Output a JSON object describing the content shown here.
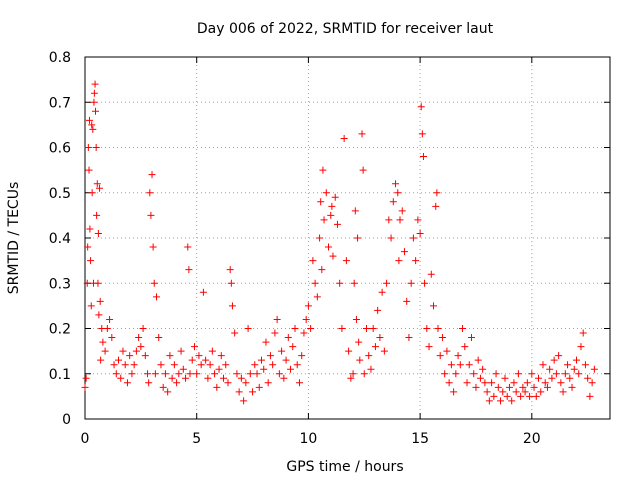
{
  "chart_data": {
    "type": "scatter",
    "title": "Day 006 of 2022, SRMTID for receiver laut",
    "xlabel": "GPS time / hours",
    "ylabel": "SRMTID / TECUs",
    "xlim": [
      0,
      23.5
    ],
    "ylim": [
      0,
      0.8
    ],
    "x_ticks": [
      0,
      5,
      10,
      15,
      20
    ],
    "x_tick_labels": [
      "0",
      "5",
      "10",
      "15",
      "20"
    ],
    "y_ticks": [
      0,
      0.1,
      0.2,
      0.3,
      0.4,
      0.5,
      0.6,
      0.7,
      0.8
    ],
    "y_tick_labels": [
      "0",
      "0.1",
      "0.2",
      "0.3",
      "0.4",
      "0.5",
      "0.6",
      "0.7",
      "0.8"
    ],
    "grid": true,
    "marker": "+",
    "colors": {
      "points": "#ff0000",
      "grid": "#a0a0a0",
      "axes": "#000000"
    },
    "series": [
      {
        "name": "SRMTID",
        "points": [
          [
            0.0,
            0.07
          ],
          [
            0.05,
            0.09
          ],
          [
            0.1,
            0.3
          ],
          [
            0.12,
            0.38
          ],
          [
            0.15,
            0.6
          ],
          [
            0.18,
            0.55
          ],
          [
            0.2,
            0.66
          ],
          [
            0.22,
            0.42
          ],
          [
            0.25,
            0.35
          ],
          [
            0.28,
            0.25
          ],
          [
            0.3,
            0.65
          ],
          [
            0.32,
            0.5
          ],
          [
            0.35,
            0.64
          ],
          [
            0.38,
            0.3
          ],
          [
            0.4,
            0.7
          ],
          [
            0.42,
            0.72
          ],
          [
            0.45,
            0.74
          ],
          [
            0.47,
            0.68
          ],
          [
            0.5,
            0.6
          ],
          [
            0.52,
            0.45
          ],
          [
            0.55,
            0.52
          ],
          [
            0.58,
            0.3
          ],
          [
            0.6,
            0.41
          ],
          [
            0.62,
            0.23
          ],
          [
            0.65,
            0.51
          ],
          [
            0.68,
            0.26
          ],
          [
            0.7,
            0.13
          ],
          [
            0.75,
            0.2
          ],
          [
            0.8,
            0.17
          ],
          [
            0.9,
            0.15
          ],
          [
            1.0,
            0.2
          ],
          [
            1.1,
            0.22
          ],
          [
            1.2,
            0.18
          ],
          [
            1.3,
            0.12
          ],
          [
            1.4,
            0.1
          ],
          [
            1.5,
            0.13
          ],
          [
            1.6,
            0.09
          ],
          [
            1.7,
            0.15
          ],
          [
            1.8,
            0.12
          ],
          [
            1.9,
            0.08
          ],
          [
            2.0,
            0.14
          ],
          [
            2.1,
            0.1
          ],
          [
            2.2,
            0.12
          ],
          [
            2.3,
            0.15
          ],
          [
            2.4,
            0.18
          ],
          [
            2.5,
            0.16
          ],
          [
            2.6,
            0.2
          ],
          [
            2.7,
            0.14
          ],
          [
            2.8,
            0.1
          ],
          [
            2.85,
            0.08
          ],
          [
            2.9,
            0.5
          ],
          [
            2.95,
            0.45
          ],
          [
            3.0,
            0.54
          ],
          [
            3.05,
            0.38
          ],
          [
            3.1,
            0.3
          ],
          [
            3.15,
            0.1
          ],
          [
            3.2,
            0.27
          ],
          [
            3.3,
            0.18
          ],
          [
            3.4,
            0.12
          ],
          [
            3.5,
            0.07
          ],
          [
            3.6,
            0.1
          ],
          [
            3.7,
            0.06
          ],
          [
            3.8,
            0.14
          ],
          [
            3.9,
            0.09
          ],
          [
            4.0,
            0.12
          ],
          [
            4.1,
            0.08
          ],
          [
            4.2,
            0.1
          ],
          [
            4.3,
            0.15
          ],
          [
            4.4,
            0.11
          ],
          [
            4.5,
            0.09
          ],
          [
            4.6,
            0.38
          ],
          [
            4.65,
            0.33
          ],
          [
            4.7,
            0.1
          ],
          [
            4.8,
            0.13
          ],
          [
            4.9,
            0.16
          ],
          [
            5.0,
            0.1
          ],
          [
            5.1,
            0.14
          ],
          [
            5.2,
            0.12
          ],
          [
            5.3,
            0.28
          ],
          [
            5.4,
            0.13
          ],
          [
            5.5,
            0.09
          ],
          [
            5.6,
            0.12
          ],
          [
            5.7,
            0.15
          ],
          [
            5.8,
            0.1
          ],
          [
            5.9,
            0.07
          ],
          [
            6.0,
            0.11
          ],
          [
            6.1,
            0.14
          ],
          [
            6.2,
            0.09
          ],
          [
            6.3,
            0.12
          ],
          [
            6.4,
            0.08
          ],
          [
            6.5,
            0.33
          ],
          [
            6.55,
            0.3
          ],
          [
            6.6,
            0.25
          ],
          [
            6.7,
            0.19
          ],
          [
            6.8,
            0.1
          ],
          [
            6.9,
            0.06
          ],
          [
            7.0,
            0.09
          ],
          [
            7.1,
            0.04
          ],
          [
            7.2,
            0.08
          ],
          [
            7.3,
            0.2
          ],
          [
            7.4,
            0.1
          ],
          [
            7.5,
            0.06
          ],
          [
            7.6,
            0.12
          ],
          [
            7.7,
            0.1
          ],
          [
            7.8,
            0.07
          ],
          [
            7.9,
            0.13
          ],
          [
            8.0,
            0.11
          ],
          [
            8.1,
            0.17
          ],
          [
            8.2,
            0.08
          ],
          [
            8.3,
            0.14
          ],
          [
            8.4,
            0.12
          ],
          [
            8.5,
            0.19
          ],
          [
            8.6,
            0.22
          ],
          [
            8.7,
            0.1
          ],
          [
            8.8,
            0.15
          ],
          [
            8.9,
            0.09
          ],
          [
            9.0,
            0.13
          ],
          [
            9.1,
            0.18
          ],
          [
            9.2,
            0.11
          ],
          [
            9.3,
            0.16
          ],
          [
            9.4,
            0.2
          ],
          [
            9.5,
            0.12
          ],
          [
            9.6,
            0.08
          ],
          [
            9.7,
            0.14
          ],
          [
            9.8,
            0.19
          ],
          [
            9.9,
            0.22
          ],
          [
            10.0,
            0.25
          ],
          [
            10.1,
            0.2
          ],
          [
            10.2,
            0.35
          ],
          [
            10.3,
            0.3
          ],
          [
            10.4,
            0.27
          ],
          [
            10.5,
            0.4
          ],
          [
            10.55,
            0.48
          ],
          [
            10.6,
            0.33
          ],
          [
            10.65,
            0.55
          ],
          [
            10.7,
            0.44
          ],
          [
            10.8,
            0.5
          ],
          [
            10.9,
            0.38
          ],
          [
            11.0,
            0.45
          ],
          [
            11.05,
            0.47
          ],
          [
            11.1,
            0.36
          ],
          [
            11.2,
            0.49
          ],
          [
            11.3,
            0.43
          ],
          [
            11.4,
            0.3
          ],
          [
            11.5,
            0.2
          ],
          [
            11.6,
            0.62
          ],
          [
            11.7,
            0.35
          ],
          [
            11.8,
            0.15
          ],
          [
            11.9,
            0.09
          ],
          [
            12.0,
            0.1
          ],
          [
            12.05,
            0.3
          ],
          [
            12.1,
            0.46
          ],
          [
            12.15,
            0.22
          ],
          [
            12.2,
            0.4
          ],
          [
            12.25,
            0.17
          ],
          [
            12.3,
            0.13
          ],
          [
            12.4,
            0.63
          ],
          [
            12.45,
            0.55
          ],
          [
            12.5,
            0.1
          ],
          [
            12.6,
            0.2
          ],
          [
            12.7,
            0.14
          ],
          [
            12.8,
            0.11
          ],
          [
            12.9,
            0.2
          ],
          [
            13.0,
            0.16
          ],
          [
            13.1,
            0.24
          ],
          [
            13.2,
            0.18
          ],
          [
            13.3,
            0.28
          ],
          [
            13.4,
            0.15
          ],
          [
            13.5,
            0.3
          ],
          [
            13.6,
            0.44
          ],
          [
            13.7,
            0.4
          ],
          [
            13.8,
            0.48
          ],
          [
            13.9,
            0.52
          ],
          [
            14.0,
            0.5
          ],
          [
            14.05,
            0.35
          ],
          [
            14.1,
            0.44
          ],
          [
            14.2,
            0.46
          ],
          [
            14.3,
            0.37
          ],
          [
            14.4,
            0.26
          ],
          [
            14.5,
            0.18
          ],
          [
            14.6,
            0.3
          ],
          [
            14.7,
            0.4
          ],
          [
            14.8,
            0.35
          ],
          [
            14.9,
            0.44
          ],
          [
            15.0,
            0.41
          ],
          [
            15.05,
            0.69
          ],
          [
            15.1,
            0.63
          ],
          [
            15.15,
            0.58
          ],
          [
            15.2,
            0.3
          ],
          [
            15.3,
            0.2
          ],
          [
            15.4,
            0.16
          ],
          [
            15.5,
            0.32
          ],
          [
            15.6,
            0.25
          ],
          [
            15.7,
            0.47
          ],
          [
            15.75,
            0.5
          ],
          [
            15.8,
            0.2
          ],
          [
            15.9,
            0.14
          ],
          [
            16.0,
            0.18
          ],
          [
            16.1,
            0.1
          ],
          [
            16.2,
            0.15
          ],
          [
            16.3,
            0.08
          ],
          [
            16.4,
            0.12
          ],
          [
            16.5,
            0.06
          ],
          [
            16.6,
            0.1
          ],
          [
            16.7,
            0.14
          ],
          [
            16.8,
            0.12
          ],
          [
            16.9,
            0.2
          ],
          [
            17.0,
            0.16
          ],
          [
            17.1,
            0.08
          ],
          [
            17.2,
            0.12
          ],
          [
            17.3,
            0.18
          ],
          [
            17.4,
            0.1
          ],
          [
            17.5,
            0.07
          ],
          [
            17.6,
            0.13
          ],
          [
            17.7,
            0.09
          ],
          [
            17.8,
            0.11
          ],
          [
            17.9,
            0.08
          ],
          [
            18.0,
            0.06
          ],
          [
            18.1,
            0.04
          ],
          [
            18.2,
            0.08
          ],
          [
            18.3,
            0.05
          ],
          [
            18.4,
            0.1
          ],
          [
            18.5,
            0.07
          ],
          [
            18.6,
            0.04
          ],
          [
            18.7,
            0.06
          ],
          [
            18.8,
            0.09
          ],
          [
            18.9,
            0.05
          ],
          [
            19.0,
            0.07
          ],
          [
            19.1,
            0.04
          ],
          [
            19.2,
            0.08
          ],
          [
            19.3,
            0.06
          ],
          [
            19.4,
            0.1
          ],
          [
            19.5,
            0.05
          ],
          [
            19.6,
            0.07
          ],
          [
            19.7,
            0.06
          ],
          [
            19.8,
            0.08
          ],
          [
            19.9,
            0.05
          ],
          [
            20.0,
            0.1
          ],
          [
            20.1,
            0.07
          ],
          [
            20.2,
            0.05
          ],
          [
            20.3,
            0.09
          ],
          [
            20.4,
            0.06
          ],
          [
            20.5,
            0.12
          ],
          [
            20.6,
            0.08
          ],
          [
            20.7,
            0.07
          ],
          [
            20.8,
            0.11
          ],
          [
            20.9,
            0.09
          ],
          [
            21.0,
            0.13
          ],
          [
            21.1,
            0.1
          ],
          [
            21.2,
            0.14
          ],
          [
            21.3,
            0.08
          ],
          [
            21.4,
            0.06
          ],
          [
            21.5,
            0.1
          ],
          [
            21.6,
            0.12
          ],
          [
            21.7,
            0.09
          ],
          [
            21.8,
            0.07
          ],
          [
            21.9,
            0.11
          ],
          [
            22.0,
            0.13
          ],
          [
            22.1,
            0.1
          ],
          [
            22.2,
            0.16
          ],
          [
            22.3,
            0.19
          ],
          [
            22.4,
            0.12
          ],
          [
            22.5,
            0.09
          ],
          [
            22.6,
            0.05
          ],
          [
            22.7,
            0.08
          ],
          [
            22.8,
            0.11
          ]
        ]
      }
    ]
  }
}
